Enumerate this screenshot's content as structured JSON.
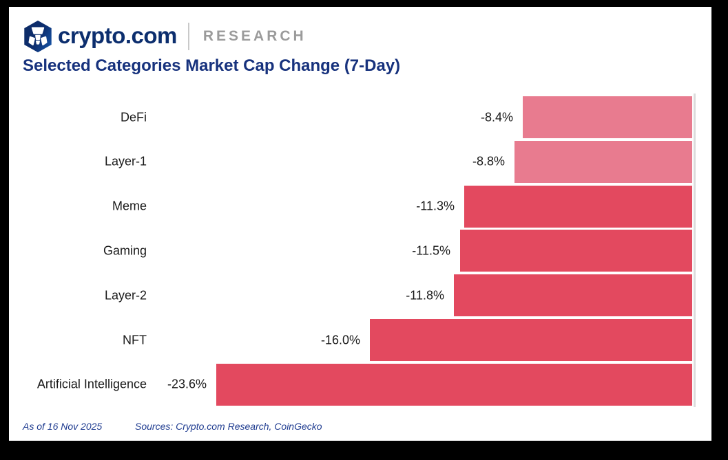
{
  "brand": {
    "logo_text": "crypto.com",
    "division": "RESEARCH",
    "logo_icon": "crypto-com-lion-hexagon"
  },
  "title": "Selected Categories Market Cap Change (7-Day)",
  "chart_data": {
    "type": "bar",
    "orientation": "horizontal-right-anchored",
    "title": "Selected Categories Market Cap Change (7-Day)",
    "categories": [
      "DeFi",
      "Layer-1",
      "Meme",
      "Gaming",
      "Layer-2",
      "NFT",
      "Artificial Intelligence"
    ],
    "values": [
      -8.4,
      -8.8,
      -11.3,
      -11.5,
      -11.8,
      -16.0,
      -23.6
    ],
    "value_labels": [
      "-8.4%",
      "-8.8%",
      "-11.3%",
      "-11.5%",
      "-11.8%",
      "-16.0%",
      "-23.6%"
    ],
    "bar_shades": [
      "light",
      "light",
      "dark",
      "dark",
      "dark",
      "dark",
      "dark"
    ],
    "unit": "%",
    "xlim": [
      -23.6,
      0
    ],
    "grid": false,
    "legend": false,
    "zero_axis_line": true
  },
  "colors": {
    "bar_light": "#E87B8F",
    "bar_dark": "#E3495F",
    "navy_title": "#17327D",
    "navy_logo": "#0C2E6E",
    "gray_research": "#9B9B9B",
    "axis_line": "#DCDCDC",
    "label_text": "#1A1A1A",
    "footer_navy": "#1D3A8F",
    "hex_dark": "#0D2B66",
    "hex_light": "#14529E"
  },
  "footer": {
    "as_of": "As of 16 Nov 2025",
    "sources": "Sources: Crypto.com Research, CoinGecko"
  }
}
